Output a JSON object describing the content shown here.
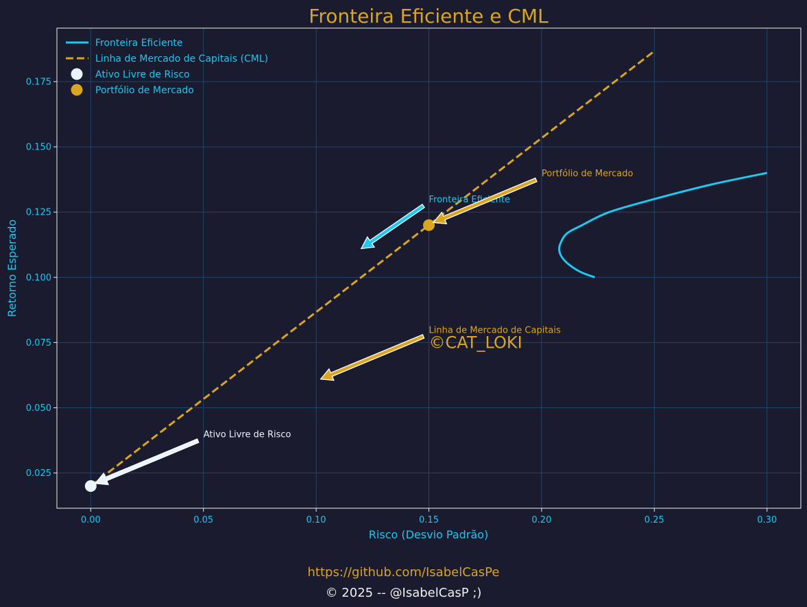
{
  "colors": {
    "background": "#1a1b2e",
    "frontier": "#1ec8f0",
    "cml": "#daa520",
    "risk_free": "#eaf4ff",
    "market": "#daa520",
    "axis_text": "#1ec8f0",
    "grid": "#20466a"
  },
  "footer": {
    "link": "https://github.com/IsabelCasPe",
    "copyright": "© 2025 -- @IsabelCasP ;)"
  },
  "chart_data": {
    "type": "line",
    "title": "Fronteira Eficiente e CML",
    "xlabel": "Risco (Desvio Padrão)",
    "ylabel": "Retorno Esperado",
    "xlim": [
      -0.015,
      0.315
    ],
    "ylim": [
      0.0115,
      0.1955
    ],
    "x_ticks": [
      "0.00",
      "0.05",
      "0.10",
      "0.15",
      "0.20",
      "0.25",
      "0.30"
    ],
    "y_ticks": [
      "0.025",
      "0.050",
      "0.075",
      "0.100",
      "0.125",
      "0.150",
      "0.175"
    ],
    "grid": true,
    "legend_position": "upper-left",
    "series": [
      {
        "name": "Fronteira Eficiente",
        "style": "solid",
        "points": [
          [
            0.2236,
            0.1
          ],
          [
            0.2174,
            0.102
          ],
          [
            0.212,
            0.105
          ],
          [
            0.2088,
            0.108
          ],
          [
            0.2078,
            0.111
          ],
          [
            0.2089,
            0.114
          ],
          [
            0.2115,
            0.117
          ],
          [
            0.218,
            0.12
          ],
          [
            0.23,
            0.125
          ],
          [
            0.25,
            0.13
          ],
          [
            0.275,
            0.1355
          ],
          [
            0.3,
            0.14
          ]
        ]
      },
      {
        "name": "Linha de Mercado de Capitais (CML)",
        "style": "dashed",
        "points": [
          [
            0.0,
            0.02
          ],
          [
            0.25,
            0.1867
          ]
        ]
      },
      {
        "name": "Ativo Livre de Risco",
        "style": "point",
        "points": [
          [
            0.0,
            0.02
          ]
        ]
      },
      {
        "name": "Portfólio de Mercado",
        "style": "point",
        "points": [
          [
            0.15,
            0.12
          ]
        ]
      }
    ],
    "annotations": [
      {
        "text": "Fronteira Eficiente",
        "text_xy": [
          0.15,
          0.13
        ],
        "arrow_xy": [
          0.12,
          0.111
        ],
        "color_key": "frontier"
      },
      {
        "text": "Portfólio de Mercado",
        "text_xy": [
          0.2,
          0.14
        ],
        "arrow_xy": [
          0.152,
          0.121
        ],
        "color_key": "market"
      },
      {
        "text": "Linha de Mercado de Capitais",
        "text_xy": [
          0.15,
          0.08
        ],
        "arrow_xy": [
          0.102,
          0.061
        ],
        "color_key": "cml"
      },
      {
        "text": "Ativo Livre de Risco",
        "text_xy": [
          0.05,
          0.04
        ],
        "arrow_xy": [
          0.002,
          0.021
        ],
        "color_key": "risk_free"
      }
    ],
    "watermark": "©CAT_LOKI"
  }
}
